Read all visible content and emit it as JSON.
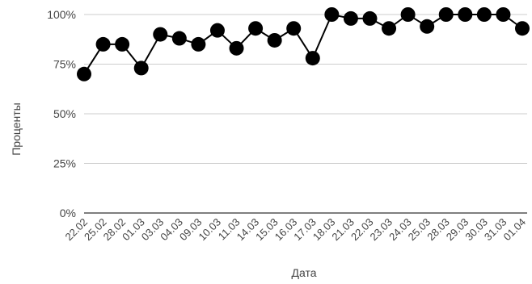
{
  "chart_data": {
    "type": "line",
    "title": "",
    "xlabel": "Дата",
    "ylabel": "Проценты",
    "categories": [
      "22.02",
      "25.02",
      "28.02",
      "01.03",
      "03.03",
      "04.03",
      "09.03",
      "10.03",
      "11.03",
      "14.03",
      "15.03",
      "16.03",
      "17.03",
      "18.03",
      "21.03",
      "22.03",
      "23.03",
      "24.03",
      "25.03",
      "28.03",
      "29.03",
      "30.03",
      "31.03",
      "01.04"
    ],
    "series": [
      {
        "values": [
          70,
          85,
          85,
          73,
          90,
          88,
          85,
          92,
          83,
          93,
          87,
          93,
          78,
          100,
          98,
          98,
          93,
          100,
          94,
          100,
          100,
          100,
          100,
          93
        ]
      }
    ],
    "ylim": [
      0,
      100
    ],
    "yticks": [
      0,
      25,
      50,
      75,
      100
    ],
    "ytick_labels": [
      "0%",
      "25%",
      "50%",
      "75%",
      "100%"
    ],
    "grid": true,
    "legend": "none",
    "colors": {
      "line": "#000000",
      "marker": "#000000",
      "grid": "#cccccc",
      "axis": "#333333",
      "text": "#444444"
    }
  }
}
